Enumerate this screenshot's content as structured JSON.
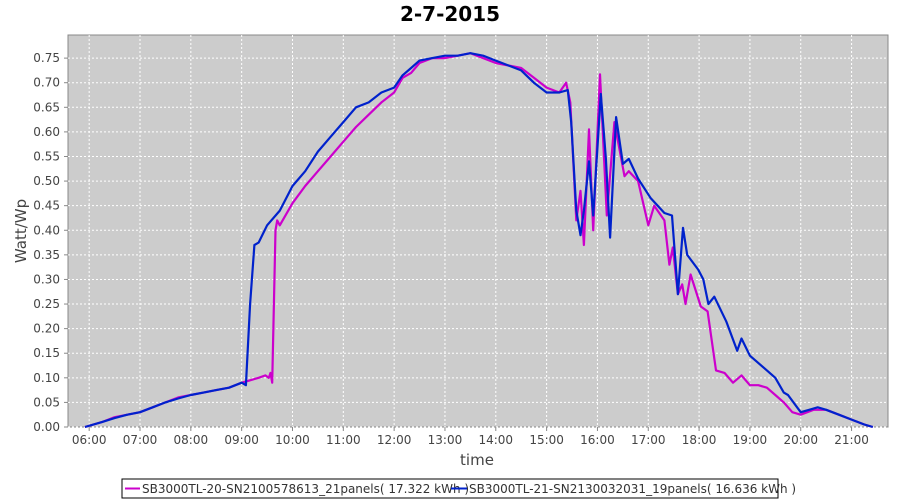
{
  "chart_data": {
    "type": "line",
    "title": "2-7-2015",
    "xlabel": "time",
    "ylabel": "Watt/Wp",
    "ylim": [
      0,
      0.797
    ],
    "xlim": [
      "05:35",
      "21:43"
    ],
    "grid": true,
    "legend_position": "bottom",
    "plot_background": "#cccccc",
    "x_ticks": [
      "06:00",
      "07:00",
      "08:00",
      "09:00",
      "10:00",
      "11:00",
      "12:00",
      "13:00",
      "14:00",
      "15:00",
      "16:00",
      "17:00",
      "18:00",
      "19:00",
      "20:00",
      "21:00"
    ],
    "y_ticks": [
      "0.00",
      "0.05",
      "0.10",
      "0.15",
      "0.20",
      "0.25",
      "0.30",
      "0.35",
      "0.40",
      "0.45",
      "0.50",
      "0.55",
      "0.60",
      "0.65",
      "0.70",
      "0.75"
    ],
    "series": [
      {
        "name": "SB3000TL-20-SN2100578613_21panels( 17.322 kWh )",
        "color": "#cc00cc",
        "points": [
          [
            "05:55",
            0.0
          ],
          [
            "06:15",
            0.01
          ],
          [
            "06:30",
            0.02
          ],
          [
            "06:45",
            0.025
          ],
          [
            "07:00",
            0.03
          ],
          [
            "07:15",
            0.04
          ],
          [
            "07:30",
            0.05
          ],
          [
            "07:45",
            0.06
          ],
          [
            "08:00",
            0.065
          ],
          [
            "08:15",
            0.07
          ],
          [
            "08:30",
            0.075
          ],
          [
            "08:45",
            0.08
          ],
          [
            "09:00",
            0.09
          ],
          [
            "09:10",
            0.095
          ],
          [
            "09:20",
            0.1
          ],
          [
            "09:28",
            0.105
          ],
          [
            "09:32",
            0.1
          ],
          [
            "09:34",
            0.11
          ],
          [
            "09:36",
            0.09
          ],
          [
            "09:40",
            0.4
          ],
          [
            "09:42",
            0.42
          ],
          [
            "09:45",
            0.41
          ],
          [
            "10:00",
            0.455
          ],
          [
            "10:15",
            0.49
          ],
          [
            "10:30",
            0.52
          ],
          [
            "10:45",
            0.55
          ],
          [
            "11:00",
            0.58
          ],
          [
            "11:15",
            0.61
          ],
          [
            "11:30",
            0.635
          ],
          [
            "11:45",
            0.66
          ],
          [
            "12:00",
            0.68
          ],
          [
            "12:10",
            0.71
          ],
          [
            "12:20",
            0.72
          ],
          [
            "12:30",
            0.74
          ],
          [
            "12:45",
            0.75
          ],
          [
            "13:00",
            0.75
          ],
          [
            "13:15",
            0.755
          ],
          [
            "13:30",
            0.76
          ],
          [
            "13:45",
            0.75
          ],
          [
            "14:00",
            0.74
          ],
          [
            "14:15",
            0.735
          ],
          [
            "14:30",
            0.73
          ],
          [
            "14:45",
            0.71
          ],
          [
            "15:00",
            0.69
          ],
          [
            "15:15",
            0.68
          ],
          [
            "15:23",
            0.7
          ],
          [
            "15:28",
            0.66
          ],
          [
            "15:35",
            0.42
          ],
          [
            "15:40",
            0.48
          ],
          [
            "15:44",
            0.37
          ],
          [
            "15:50",
            0.605
          ],
          [
            "15:55",
            0.4
          ],
          [
            "16:03",
            0.717
          ],
          [
            "16:11",
            0.43
          ],
          [
            "16:20",
            0.62
          ],
          [
            "16:32",
            0.51
          ],
          [
            "16:37",
            0.52
          ],
          [
            "16:48",
            0.5
          ],
          [
            "17:00",
            0.41
          ],
          [
            "17:07",
            0.45
          ],
          [
            "17:19",
            0.42
          ],
          [
            "17:25",
            0.33
          ],
          [
            "17:29",
            0.365
          ],
          [
            "17:35",
            0.27
          ],
          [
            "17:40",
            0.29
          ],
          [
            "17:44",
            0.25
          ],
          [
            "17:50",
            0.31
          ],
          [
            "18:02",
            0.245
          ],
          [
            "18:10",
            0.235
          ],
          [
            "18:20",
            0.115
          ],
          [
            "18:30",
            0.11
          ],
          [
            "18:40",
            0.09
          ],
          [
            "18:50",
            0.105
          ],
          [
            "19:00",
            0.085
          ],
          [
            "19:10",
            0.085
          ],
          [
            "19:20",
            0.08
          ],
          [
            "19:30",
            0.065
          ],
          [
            "19:40",
            0.05
          ],
          [
            "19:50",
            0.03
          ],
          [
            "20:00",
            0.025
          ],
          [
            "20:15",
            0.035
          ],
          [
            "20:30",
            0.035
          ],
          [
            "20:45",
            0.025
          ],
          [
            "21:00",
            0.015
          ],
          [
            "21:15",
            0.005
          ],
          [
            "21:25",
            0.0
          ]
        ]
      },
      {
        "name": "SB3000TL-21-SN2130032031_19panels( 16.636 kWh )",
        "color": "#0022cc",
        "points": [
          [
            "05:55",
            0.0
          ],
          [
            "06:15",
            0.01
          ],
          [
            "06:30",
            0.018
          ],
          [
            "06:45",
            0.025
          ],
          [
            "07:00",
            0.03
          ],
          [
            "07:15",
            0.04
          ],
          [
            "07:30",
            0.05
          ],
          [
            "07:45",
            0.058
          ],
          [
            "08:00",
            0.065
          ],
          [
            "08:15",
            0.07
          ],
          [
            "08:30",
            0.075
          ],
          [
            "08:45",
            0.08
          ],
          [
            "09:00",
            0.09
          ],
          [
            "09:05",
            0.085
          ],
          [
            "09:10",
            0.25
          ],
          [
            "09:15",
            0.37
          ],
          [
            "09:20",
            0.375
          ],
          [
            "09:30",
            0.41
          ],
          [
            "09:45",
            0.44
          ],
          [
            "10:00",
            0.49
          ],
          [
            "10:15",
            0.52
          ],
          [
            "10:30",
            0.56
          ],
          [
            "10:45",
            0.59
          ],
          [
            "11:00",
            0.62
          ],
          [
            "11:15",
            0.65
          ],
          [
            "11:30",
            0.66
          ],
          [
            "11:45",
            0.68
          ],
          [
            "12:00",
            0.69
          ],
          [
            "12:10",
            0.715
          ],
          [
            "12:20",
            0.73
          ],
          [
            "12:30",
            0.745
          ],
          [
            "12:45",
            0.75
          ],
          [
            "13:00",
            0.755
          ],
          [
            "13:15",
            0.755
          ],
          [
            "13:30",
            0.76
          ],
          [
            "13:45",
            0.755
          ],
          [
            "14:00",
            0.745
          ],
          [
            "14:15",
            0.735
          ],
          [
            "14:30",
            0.725
          ],
          [
            "14:45",
            0.7
          ],
          [
            "15:00",
            0.68
          ],
          [
            "15:15",
            0.68
          ],
          [
            "15:25",
            0.685
          ],
          [
            "15:29",
            0.62
          ],
          [
            "15:35",
            0.44
          ],
          [
            "15:40",
            0.39
          ],
          [
            "15:44",
            0.44
          ],
          [
            "15:50",
            0.54
          ],
          [
            "15:55",
            0.43
          ],
          [
            "16:04",
            0.677
          ],
          [
            "16:10",
            0.545
          ],
          [
            "16:15",
            0.385
          ],
          [
            "16:22",
            0.63
          ],
          [
            "16:30",
            0.535
          ],
          [
            "16:37",
            0.545
          ],
          [
            "16:48",
            0.505
          ],
          [
            "17:03",
            0.465
          ],
          [
            "17:19",
            0.435
          ],
          [
            "17:28",
            0.43
          ],
          [
            "17:35",
            0.27
          ],
          [
            "17:41",
            0.405
          ],
          [
            "17:46",
            0.35
          ],
          [
            "17:59",
            0.32
          ],
          [
            "18:05",
            0.3
          ],
          [
            "18:11",
            0.25
          ],
          [
            "18:18",
            0.265
          ],
          [
            "18:32",
            0.215
          ],
          [
            "18:45",
            0.155
          ],
          [
            "18:50",
            0.18
          ],
          [
            "19:00",
            0.145
          ],
          [
            "19:10",
            0.13
          ],
          [
            "19:20",
            0.115
          ],
          [
            "19:30",
            0.1
          ],
          [
            "19:40",
            0.07
          ],
          [
            "19:45",
            0.065
          ],
          [
            "20:00",
            0.03
          ],
          [
            "20:10",
            0.035
          ],
          [
            "20:20",
            0.04
          ],
          [
            "20:30",
            0.035
          ],
          [
            "20:45",
            0.025
          ],
          [
            "21:00",
            0.015
          ],
          [
            "21:15",
            0.005
          ],
          [
            "21:25",
            0.0
          ]
        ]
      }
    ]
  }
}
